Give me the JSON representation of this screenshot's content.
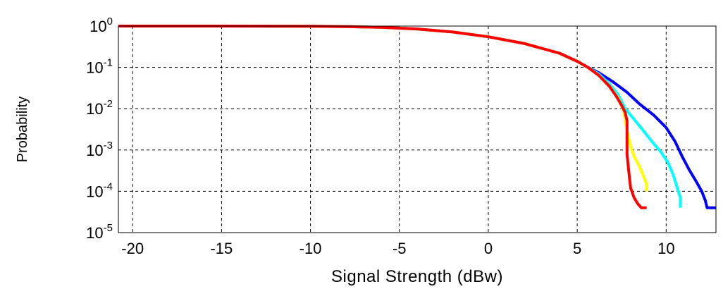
{
  "chart_data": {
    "type": "line",
    "title": "",
    "xlabel": "Signal Strength (dBw)",
    "ylabel": "Probability",
    "xlim": [
      -20.8,
      12.8
    ],
    "ylim_log10": [
      -5,
      0
    ],
    "yscale": "log",
    "grid": true,
    "grid_style": "dashed",
    "legend": "none",
    "x_ticks": [
      -20,
      -15,
      -10,
      -5,
      0,
      5,
      10
    ],
    "y_ticks": [
      {
        "base": "10",
        "exp": "0"
      },
      {
        "base": "10",
        "exp": "-1"
      },
      {
        "base": "10",
        "exp": "-2"
      },
      {
        "base": "10",
        "exp": "-3"
      },
      {
        "base": "10",
        "exp": "-4"
      },
      {
        "base": "10",
        "exp": "-5"
      }
    ],
    "series": [
      {
        "color": "#0000ff",
        "x": [
          -20.8,
          -15,
          -10,
          -8,
          -6,
          -4,
          -2,
          0,
          2,
          4,
          5,
          5.6,
          6.2,
          7,
          7.8,
          8.5,
          9.3,
          10,
          10.5,
          10.9,
          11.3,
          11.7,
          12.0,
          12.2,
          12.3,
          12.8
        ],
        "y": [
          1,
          1,
          0.99,
          0.97,
          0.93,
          0.85,
          0.72,
          0.55,
          0.38,
          0.22,
          0.14,
          0.1,
          0.075,
          0.045,
          0.025,
          0.013,
          0.007,
          0.0035,
          0.0016,
          0.0007,
          0.00033,
          0.00017,
          0.0001,
          6e-05,
          4e-05,
          4e-05
        ]
      },
      {
        "color": "#00ffff",
        "x": [
          -20.8,
          -15,
          -10,
          -8,
          -6,
          -4,
          -2,
          0,
          2,
          4,
          5,
          5.6,
          6.2,
          6.8,
          7.3,
          7.7,
          8.2,
          8.7,
          9.2,
          9.7,
          10.1,
          10.4,
          10.6,
          10.8,
          10.8
        ],
        "y": [
          1,
          1,
          0.99,
          0.97,
          0.93,
          0.85,
          0.72,
          0.55,
          0.38,
          0.22,
          0.14,
          0.1,
          0.07,
          0.04,
          0.022,
          0.01,
          0.0055,
          0.003,
          0.0016,
          0.0009,
          0.0005,
          0.00025,
          0.00013,
          7e-05,
          4e-05
        ]
      },
      {
        "color": "#ffff00",
        "x": [
          -20.8,
          -15,
          -10,
          -8,
          -6,
          -4,
          -2,
          0,
          2,
          4,
          5,
          5.6,
          6.2,
          6.8,
          7.3,
          7.6,
          7.8,
          8.0,
          8.2,
          8.5,
          8.7,
          8.9,
          8.9
        ],
        "y": [
          1,
          1,
          0.99,
          0.97,
          0.93,
          0.85,
          0.72,
          0.55,
          0.38,
          0.22,
          0.14,
          0.1,
          0.065,
          0.035,
          0.018,
          0.009,
          0.003,
          0.0012,
          0.0007,
          0.0004,
          0.00025,
          0.00015,
          0.0001
        ]
      },
      {
        "color": "#ff0000",
        "x": [
          -20.8,
          -15,
          -10,
          -8,
          -6,
          -4,
          -2,
          0,
          2,
          4,
          5,
          5.6,
          6.2,
          6.8,
          7.2,
          7.5,
          7.7,
          7.8,
          7.8,
          7.9,
          8.0,
          8.2,
          8.4,
          8.6,
          8.9
        ],
        "y": [
          1,
          1,
          0.99,
          0.97,
          0.93,
          0.85,
          0.72,
          0.55,
          0.38,
          0.22,
          0.14,
          0.1,
          0.065,
          0.035,
          0.02,
          0.012,
          0.008,
          0.005,
          0.0008,
          0.0003,
          0.00012,
          7e-05,
          5e-05,
          4e-05,
          4e-05
        ]
      }
    ]
  }
}
